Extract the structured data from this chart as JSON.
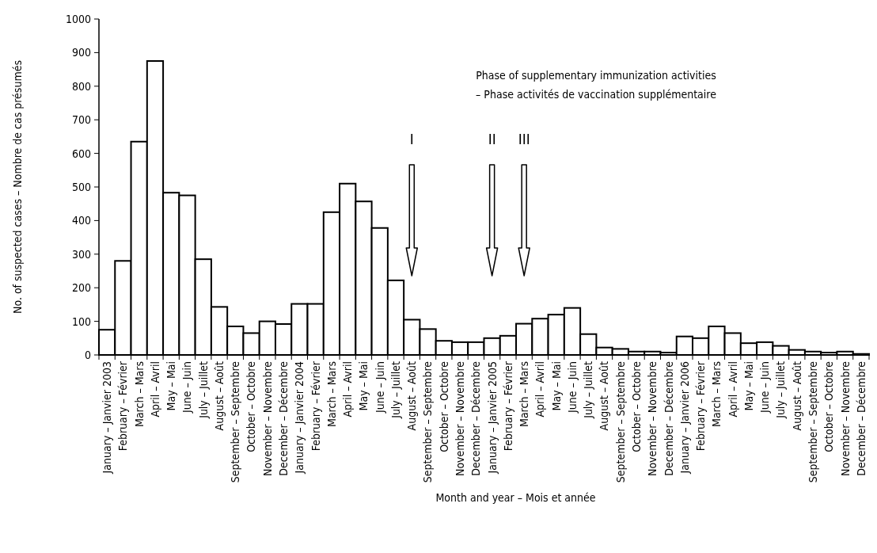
{
  "chart_data": {
    "type": "bar",
    "xlabel": "Month and year – Mois et année",
    "ylabel": "No. of suspected cases – Nombre de cas présumés",
    "categories": [
      "January – Janvier 2003",
      "February – Février",
      "March – Mars",
      "April – Avril",
      "May – Mai",
      "June – Juin",
      "July – Juillet",
      "August – Août",
      "September – Septembre",
      "October – Octobre",
      "November – Novembre",
      "December – Décembre",
      "January – Janvier 2004",
      "February – Février",
      "March – Mars",
      "April – Avril",
      "May – Mai",
      "June – Juin",
      "July – Juillet",
      "August – Août",
      "September – Septembre",
      "October – Octobre",
      "November – Novembre",
      "December – Décembre",
      "January – Janvier 2005",
      "February – Février",
      "March – Mars",
      "April – Avril",
      "May – Mai",
      "June – Juin",
      "July – Juillet",
      "August – Août",
      "September – Septembre",
      "October – Octobre",
      "November – Novembre",
      "December – Décembre",
      "January – Janvier 2006",
      "February – Février",
      "March – Mars",
      "April – Avril",
      "May – Mai",
      "June – Juin",
      "July – Juillet",
      "August – Août",
      "September – Septembre",
      "October – Octobre",
      "November – Novembre",
      "December – Décembre"
    ],
    "values": [
      75,
      280,
      635,
      875,
      483,
      475,
      285,
      143,
      85,
      65,
      100,
      92,
      152,
      152,
      425,
      510,
      457,
      378,
      222,
      105,
      77,
      42,
      38,
      38,
      50,
      57,
      93,
      108,
      120,
      140,
      62,
      22,
      18,
      10,
      10,
      7,
      55,
      50,
      85,
      65,
      35,
      38,
      27,
      15,
      10,
      7,
      10,
      3
    ],
    "color": "#ffffff",
    "ylim": [
      0,
      1000
    ],
    "yticks": [
      0,
      100,
      200,
      300,
      400,
      500,
      600,
      700,
      800,
      900,
      1000
    ],
    "grid": false,
    "annotations": [
      "Phase of supplementary immunization activities\n– Phase activités de vaccination supplémentaire",
      "I",
      "II",
      "III"
    ]
  }
}
